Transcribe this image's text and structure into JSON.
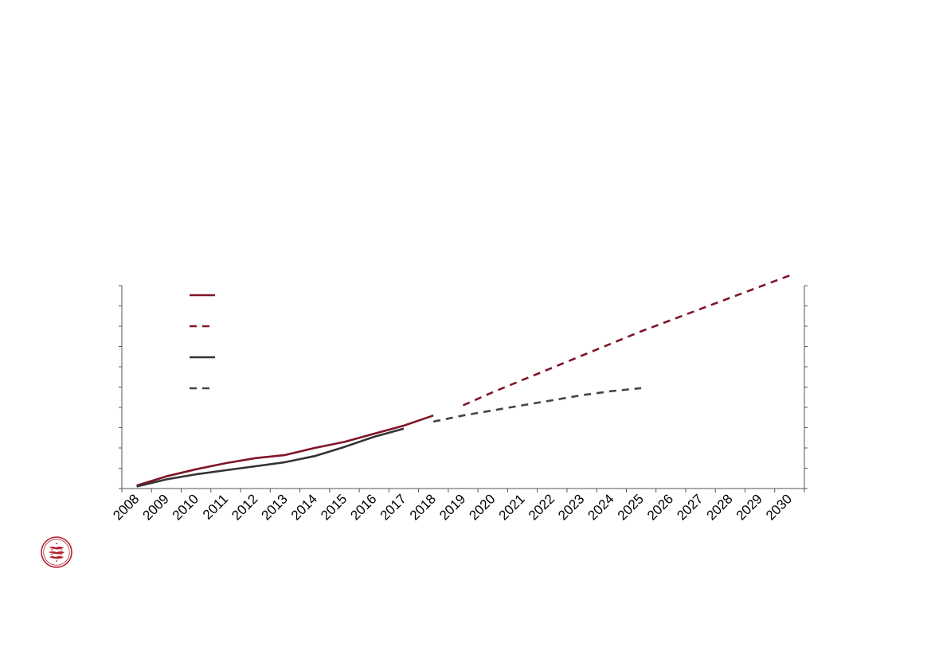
{
  "chart_data": {
    "type": "line",
    "title": "",
    "xlabel": "",
    "ylabel": "",
    "categories": [
      "2008",
      "2009",
      "2010",
      "2011",
      "2012",
      "2013",
      "2014",
      "2015",
      "2016",
      "2017",
      "2018",
      "2019",
      "2020",
      "2021",
      "2022",
      "2023",
      "2024",
      "2025",
      "2026",
      "2027",
      "2028",
      "2029",
      "2030"
    ],
    "ylim": [
      0,
      10
    ],
    "y_ticks_labeled": false,
    "grid": false,
    "legend_placement": "top-left",
    "series": [
      {
        "color": "#7f1527",
        "style": "solid",
        "points": [
          [
            2008.5,
            0.15
          ],
          [
            2009.5,
            0.6
          ],
          [
            2010.5,
            0.95
          ],
          [
            2011.5,
            1.25
          ],
          [
            2012.5,
            1.5
          ],
          [
            2013.5,
            1.65
          ],
          [
            2014.5,
            2.0
          ],
          [
            2015.5,
            2.3
          ],
          [
            2016.5,
            2.7
          ],
          [
            2017.5,
            3.1
          ],
          [
            2018.5,
            3.6
          ]
        ]
      },
      {
        "color": "#7f1527",
        "style": "dashed",
        "points": [
          [
            2019.5,
            4.1
          ],
          [
            2020.5,
            4.75
          ],
          [
            2021.5,
            5.35
          ],
          [
            2022.5,
            5.95
          ],
          [
            2023.5,
            6.55
          ],
          [
            2024.5,
            7.15
          ],
          [
            2025.5,
            7.75
          ],
          [
            2026.5,
            8.3
          ],
          [
            2027.5,
            8.85
          ],
          [
            2028.5,
            9.4
          ],
          [
            2029.5,
            9.95
          ],
          [
            2030.5,
            10.5
          ]
        ]
      },
      {
        "color": "#333333",
        "style": "solid",
        "points": [
          [
            2008.5,
            0.1
          ],
          [
            2009.5,
            0.45
          ],
          [
            2010.5,
            0.7
          ],
          [
            2011.5,
            0.9
          ],
          [
            2012.5,
            1.1
          ],
          [
            2013.5,
            1.3
          ],
          [
            2014.5,
            1.6
          ],
          [
            2015.5,
            2.05
          ],
          [
            2016.5,
            2.55
          ],
          [
            2017.5,
            2.95
          ]
        ]
      },
      {
        "color": "#444444",
        "style": "dashed",
        "points": [
          [
            2018.5,
            3.3
          ],
          [
            2019.5,
            3.6
          ],
          [
            2020.5,
            3.85
          ],
          [
            2021.5,
            4.1
          ],
          [
            2022.5,
            4.35
          ],
          [
            2023.5,
            4.6
          ],
          [
            2024.5,
            4.8
          ],
          [
            2025.5,
            4.95
          ]
        ]
      }
    ]
  },
  "logo": {
    "icon": "three-lions-seal-icon",
    "color": "#b5202e"
  }
}
